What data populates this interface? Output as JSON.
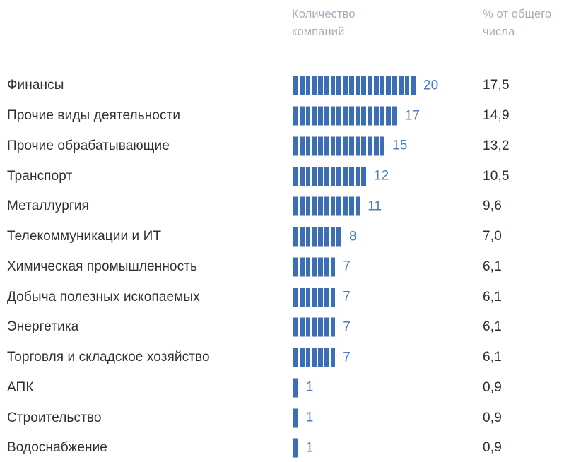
{
  "chart_data": {
    "type": "bar",
    "orientation": "horizontal",
    "style": "segmented-unit-bars",
    "count_header": "Количество компаний",
    "percent_header": "% от общего числа",
    "categories": [
      "Финансы",
      "Прочие виды деятельности",
      "Прочие обрабатывающие",
      "Транспорт",
      "Металлургия",
      "Телекоммуникации и ИТ",
      "Химическая промышленность",
      "Добыча полезных ископаемых",
      "Энергетика",
      "Торговля и складское хозяйство",
      "АПК",
      "Строительство",
      "Водоснабжение"
    ],
    "values": [
      20,
      17,
      15,
      12,
      11,
      8,
      7,
      7,
      7,
      7,
      1,
      1,
      1
    ],
    "percents": [
      "17,5",
      "14,9",
      "13,2",
      "10,5",
      "9,6",
      "7,0",
      "6,1",
      "6,1",
      "6,1",
      "6,1",
      "0,9",
      "0,9",
      "0,9"
    ],
    "rows": [
      {
        "label": "Финансы",
        "count": "20",
        "percent": "17,5"
      },
      {
        "label": "Прочие виды деятельности",
        "count": "17",
        "percent": "14,9"
      },
      {
        "label": "Прочие обрабатывающие",
        "count": "15",
        "percent": "13,2"
      },
      {
        "label": "Транспорт",
        "count": "12",
        "percent": "10,5"
      },
      {
        "label": "Металлургия",
        "count": "11",
        "percent": "9,6"
      },
      {
        "label": "Телекоммуникации и ИТ",
        "count": "8",
        "percent": "7,0"
      },
      {
        "label": "Химическая промышленность",
        "count": "7",
        "percent": "6,1"
      },
      {
        "label": "Добыча полезных ископаемых",
        "count": "7",
        "percent": "6,1"
      },
      {
        "label": "Энергетика",
        "count": "7",
        "percent": "6,1"
      },
      {
        "label": "Торговля и складское хозяйство",
        "count": "7",
        "percent": "6,1"
      },
      {
        "label": "АПК",
        "count": "1",
        "percent": "0,9"
      },
      {
        "label": "Строительство",
        "count": "1",
        "percent": "0,9"
      },
      {
        "label": "Водоснабжение",
        "count": "1",
        "percent": "0,9"
      }
    ],
    "xlim": [
      0,
      20
    ],
    "grid": false,
    "legend": false,
    "colors": {
      "bar": "#3b6eb4",
      "count_text": "#4a7bc5",
      "label_text": "#2e3035",
      "header_text": "#a7adba",
      "background": "#ffffff"
    }
  }
}
